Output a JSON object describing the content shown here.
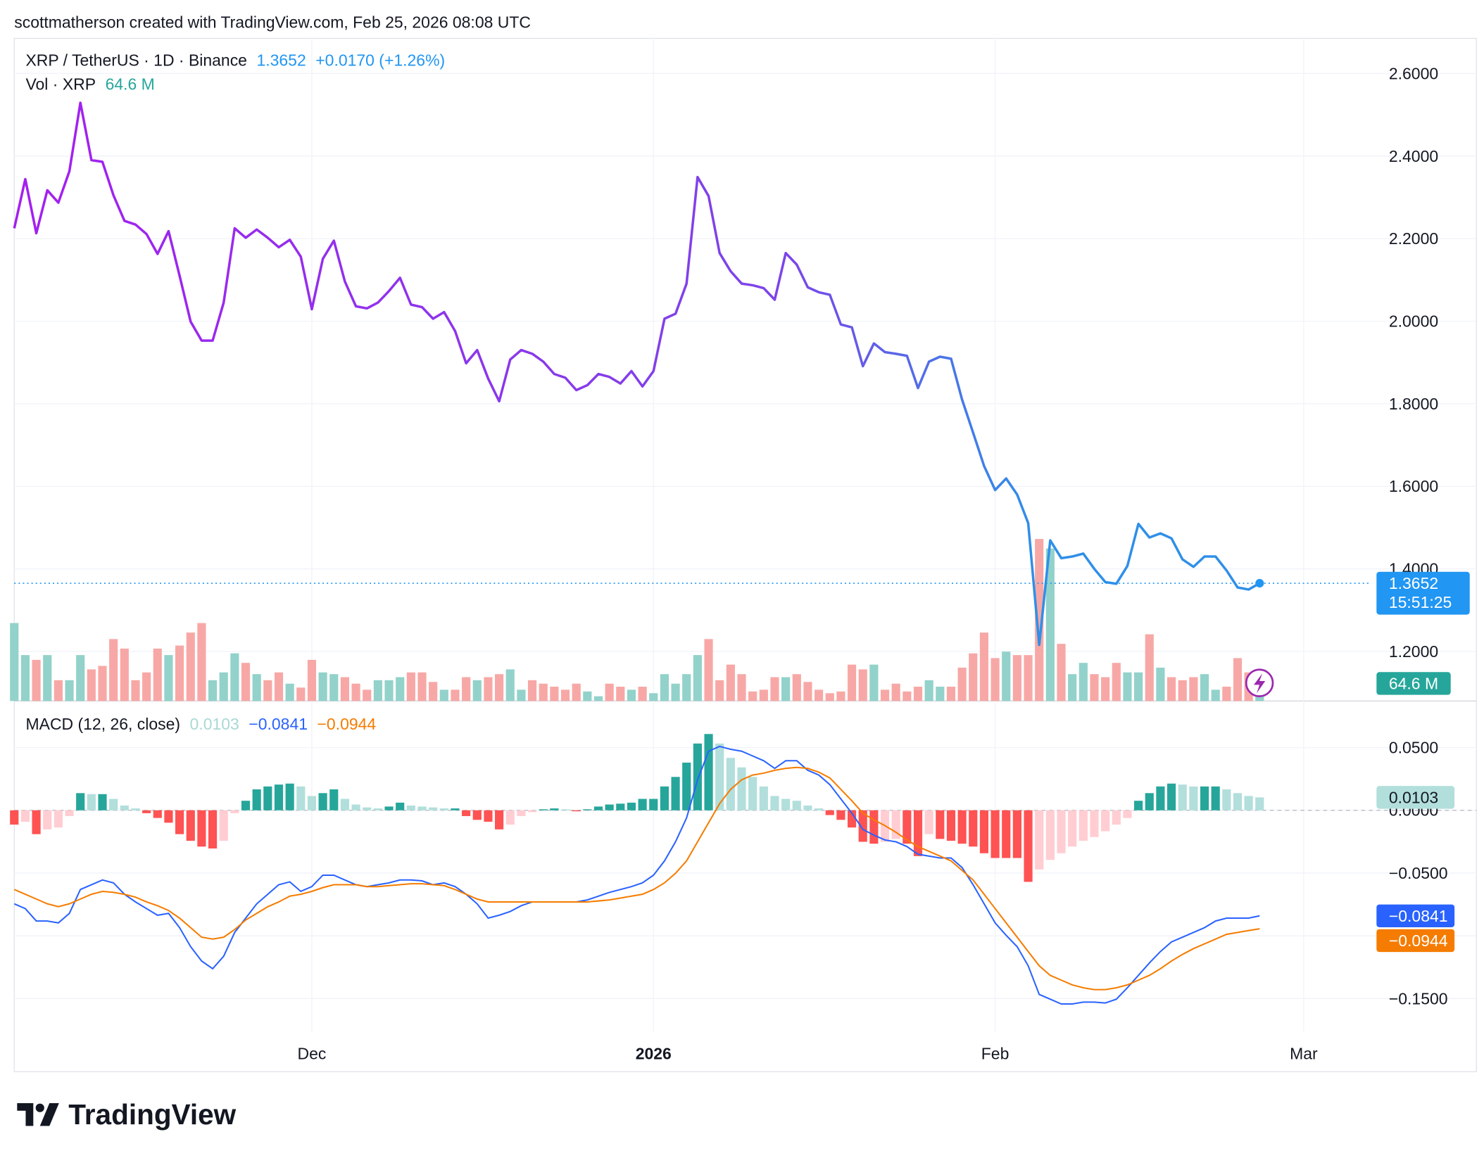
{
  "attribution": "scottmatherson created with TradingView.com, Feb 25, 2026 08:08 UTC",
  "branding": "TradingView",
  "chart_data": [
    {
      "type": "line",
      "series": [
        {
          "name": "XRP / TetherUS · 1D · Binance",
          "colors": [
            "#a41ff0",
            "#7c45e8",
            "#2f8fe8"
          ],
          "last_label": "1.3652",
          "change_label": "+0.0170 (+1.26%)",
          "values": [
            2.225,
            2.344,
            2.213,
            2.317,
            2.287,
            2.363,
            2.529,
            2.39,
            2.386,
            2.305,
            2.243,
            2.234,
            2.211,
            2.163,
            2.218,
            2.11,
            1.999,
            1.953,
            1.953,
            2.045,
            2.225,
            2.202,
            2.222,
            2.202,
            2.179,
            2.197,
            2.156,
            2.029,
            2.151,
            2.195,
            2.096,
            2.036,
            2.031,
            2.045,
            2.073,
            2.105,
            2.04,
            2.034,
            2.006,
            2.022,
            1.976,
            1.898,
            1.93,
            1.861,
            1.806,
            1.907,
            1.93,
            1.921,
            1.902,
            1.872,
            1.863,
            1.833,
            1.845,
            1.872,
            1.865,
            1.849,
            1.879,
            1.842,
            1.879,
            2.006,
            2.018,
            2.091,
            2.349,
            2.303,
            2.165,
            2.121,
            2.091,
            2.087,
            2.08,
            2.052,
            2.165,
            2.137,
            2.082,
            2.07,
            2.064,
            1.992,
            1.985,
            1.891,
            1.946,
            1.925,
            1.921,
            1.916,
            1.838,
            1.902,
            1.914,
            1.909,
            1.81,
            1.73,
            1.649,
            1.591,
            1.619,
            1.58,
            1.511,
            1.216,
            1.469,
            1.426,
            1.43,
            1.437,
            1.4,
            1.368,
            1.364,
            1.407,
            1.509,
            1.476,
            1.486,
            1.474,
            1.423,
            1.405,
            1.43,
            1.43,
            1.396,
            1.355,
            1.35,
            1.3652
          ]
        }
      ],
      "countdown": "15:51:25",
      "volume": {
        "name": "Vol · XRP",
        "last_label": "64.6 M",
        "colors": [
          "#92d2ca",
          "#f7a8a6"
        ],
        "ylim": [
          0,
          1530
        ],
        "values": [
          180,
          106,
          95,
          106,
          48,
          48,
          106,
          73,
          81,
          143,
          121,
          48,
          66,
          121,
          106,
          128,
          158,
          180,
          48,
          66,
          110,
          88,
          62,
          48,
          66,
          40,
          31,
          95,
          66,
          62,
          55,
          40,
          26,
          48,
          48,
          55,
          66,
          66,
          44,
          26,
          26,
          55,
          48,
          55,
          62,
          73,
          26,
          48,
          40,
          33,
          26,
          40,
          22,
          11,
          40,
          33,
          26,
          33,
          18,
          62,
          40,
          62,
          106,
          143,
          48,
          84,
          62,
          22,
          26,
          55,
          55,
          62,
          44,
          26,
          18,
          22,
          84,
          73,
          84,
          26,
          40,
          22,
          33,
          48,
          33,
          33,
          77,
          110,
          158,
          99,
          114,
          106,
          106,
          374,
          352,
          132,
          62,
          88,
          62,
          55,
          88,
          66,
          66,
          154,
          77,
          55,
          48,
          55,
          62,
          26,
          33,
          99,
          66,
          64.6
        ]
      },
      "ylim": [
        1.08,
        2.685
      ],
      "yticks": [
        {
          "value": 1.2,
          "label": "1.2000"
        },
        {
          "value": 1.4,
          "label": "1.4000"
        },
        {
          "value": 1.6,
          "label": "1.6000"
        },
        {
          "value": 1.8,
          "label": "1.8000"
        },
        {
          "value": 2.0,
          "label": "2.0000"
        },
        {
          "value": 2.2,
          "label": "2.2000"
        },
        {
          "value": 2.4,
          "label": "2.4000"
        },
        {
          "value": 2.6,
          "label": "2.6000"
        }
      ],
      "grid": true
    },
    {
      "type": "macd",
      "title": "MACD (12, 26, close)",
      "series": [
        {
          "colors": [
            "#26a69a",
            "#b2dfdb",
            "#ff5252",
            "#ffcdd2"
          ],
          "last_label": "0.0103",
          "values": [
            -0.0114,
            -0.0091,
            -0.019,
            -0.0152,
            -0.0137,
            -0.0046,
            0.0137,
            0.0129,
            0.0129,
            0.0091,
            0.0038,
            0.0015,
            -0.0023,
            -0.0061,
            -0.0099,
            -0.019,
            -0.0243,
            -0.0289,
            -0.0304,
            -0.0243,
            -0.0023,
            0.0076,
            0.0167,
            0.019,
            0.0205,
            0.0213,
            0.019,
            0.0114,
            0.0137,
            0.0167,
            0.0091,
            0.0046,
            0.0023,
            0.0015,
            0.003,
            0.0061,
            0.0038,
            0.003,
            0.0023,
            0.0015,
            0.0015,
            -0.0046,
            -0.0076,
            -0.0091,
            -0.0152,
            -0.0114,
            -0.0046,
            -0.0015,
            0.0008,
            0.0015,
            0.0008,
            -0.0008,
            0.0008,
            0.003,
            0.0046,
            0.0053,
            0.0061,
            0.0091,
            0.0091,
            0.019,
            0.0266,
            0.038,
            0.0532,
            0.0608,
            0.0532,
            0.0418,
            0.0342,
            0.0266,
            0.019,
            0.0114,
            0.0091,
            0.0076,
            0.0038,
            0.0015,
            -0.0038,
            -0.0076,
            -0.0137,
            -0.0251,
            -0.0266,
            -0.0251,
            -0.0228,
            -0.0266,
            -0.0365,
            -0.019,
            -0.0228,
            -0.0243,
            -0.0266,
            -0.0289,
            -0.0342,
            -0.038,
            -0.038,
            -0.038,
            -0.057,
            -0.0471,
            -0.0395,
            -0.0342,
            -0.0289,
            -0.0243,
            -0.0213,
            -0.0167,
            -0.0114,
            -0.0061,
            0.0076,
            0.0137,
            0.019,
            0.0213,
            0.0205,
            0.019,
            0.019,
            0.019,
            0.0167,
            0.0137,
            0.0114,
            0.0103
          ]
        },
        {
          "color": "#2962ff",
          "last_label": "−0.0841",
          "values": [
            -0.0745,
            -0.0783,
            -0.0882,
            -0.0882,
            -0.0897,
            -0.0821,
            -0.0631,
            -0.0593,
            -0.0555,
            -0.0578,
            -0.0669,
            -0.073,
            -0.0783,
            -0.0836,
            -0.0821,
            -0.0935,
            -0.1086,
            -0.1201,
            -0.1262,
            -0.1163,
            -0.0973,
            -0.0859,
            -0.0745,
            -0.0669,
            -0.0593,
            -0.057,
            -0.0646,
            -0.0608,
            -0.0517,
            -0.0517,
            -0.0555,
            -0.0593,
            -0.0608,
            -0.0593,
            -0.0578,
            -0.0555,
            -0.0555,
            -0.0562,
            -0.0593,
            -0.0578,
            -0.0608,
            -0.0669,
            -0.0745,
            -0.0859,
            -0.0836,
            -0.0806,
            -0.076,
            -0.073,
            -0.073,
            -0.073,
            -0.073,
            -0.073,
            -0.0714,
            -0.0684,
            -0.0654,
            -0.0631,
            -0.0608,
            -0.0578,
            -0.0517,
            -0.0403,
            -0.0251,
            -0.0061,
            0.0243,
            0.0471,
            0.0509,
            0.0486,
            0.0471,
            0.0433,
            0.0395,
            0.0334,
            0.0395,
            0.0395,
            0.0319,
            0.0281,
            0.0205,
            0.0091,
            -0.0023,
            -0.0152,
            -0.0198,
            -0.0236,
            -0.0251,
            -0.0289,
            -0.035,
            -0.0365,
            -0.038,
            -0.038,
            -0.0456,
            -0.0593,
            -0.0745,
            -0.0897,
            -0.0996,
            -0.1087,
            -0.1239,
            -0.1467,
            -0.1505,
            -0.1543,
            -0.1543,
            -0.1528,
            -0.1528,
            -0.1535,
            -0.1505,
            -0.1414,
            -0.1315,
            -0.1216,
            -0.1125,
            -0.1049,
            -0.1011,
            -0.0973,
            -0.0935,
            -0.0882,
            -0.0859,
            -0.0859,
            -0.0859,
            -0.0841
          ]
        },
        {
          "color": "#f57c00",
          "last_label": "−0.0944",
          "values": [
            -0.0631,
            -0.0669,
            -0.0707,
            -0.0745,
            -0.0768,
            -0.0745,
            -0.0707,
            -0.0669,
            -0.0646,
            -0.0654,
            -0.0669,
            -0.0692,
            -0.073,
            -0.076,
            -0.0798,
            -0.0859,
            -0.0935,
            -0.1011,
            -0.1026,
            -0.1011,
            -0.095,
            -0.0874,
            -0.0821,
            -0.0768,
            -0.073,
            -0.0684,
            -0.0669,
            -0.0646,
            -0.0616,
            -0.0593,
            -0.0593,
            -0.0593,
            -0.0608,
            -0.0608,
            -0.06,
            -0.0593,
            -0.0585,
            -0.0585,
            -0.0593,
            -0.06,
            -0.0631,
            -0.0669,
            -0.0707,
            -0.073,
            -0.073,
            -0.073,
            -0.073,
            -0.073,
            -0.073,
            -0.073,
            -0.073,
            -0.073,
            -0.073,
            -0.0722,
            -0.0714,
            -0.0699,
            -0.0684,
            -0.0669,
            -0.0631,
            -0.0578,
            -0.0502,
            -0.0403,
            -0.0251,
            -0.0099,
            0.0053,
            0.0167,
            0.0243,
            0.0281,
            0.0296,
            0.0319,
            0.0334,
            0.0342,
            0.0334,
            0.0304,
            0.0258,
            0.0167,
            0.0076,
            -0.0023,
            -0.0076,
            -0.0122,
            -0.0175,
            -0.0236,
            -0.0289,
            -0.0327,
            -0.0365,
            -0.0403,
            -0.0479,
            -0.0555,
            -0.0669,
            -0.0783,
            -0.0897,
            -0.1011,
            -0.1125,
            -0.1239,
            -0.1315,
            -0.1353,
            -0.1391,
            -0.1414,
            -0.1429,
            -0.1429,
            -0.1414,
            -0.1391,
            -0.1353,
            -0.1315,
            -0.1262,
            -0.1201,
            -0.1148,
            -0.1102,
            -0.1064,
            -0.1026,
            -0.0988,
            -0.0973,
            -0.0958,
            -0.0944
          ]
        }
      ],
      "ylim": [
        -0.1765,
        0.0871
      ],
      "yticks": [
        {
          "value": 0.05,
          "label": "0.0500"
        },
        {
          "value": 0,
          "label": "0.0000"
        },
        {
          "value": -0.05,
          "label": "−0.0500"
        },
        {
          "value": -0.1,
          "label": "−0.1000"
        },
        {
          "value": -0.15,
          "label": "−0.1500"
        }
      ],
      "xlim": [
        0,
        123
      ],
      "xticks": [
        {
          "value": 27,
          "label": "Dec"
        },
        {
          "value": 58,
          "label": "2026"
        },
        {
          "value": 89,
          "label": "Feb"
        },
        {
          "value": 117,
          "label": "Mar"
        }
      ],
      "grid": true
    }
  ]
}
